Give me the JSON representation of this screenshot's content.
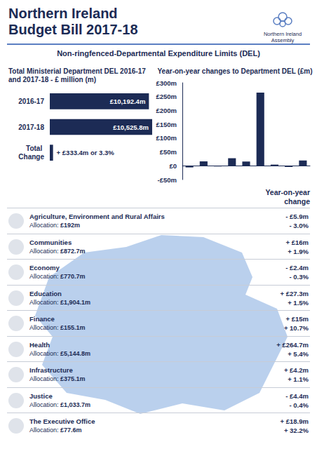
{
  "header": {
    "title": [
      "Northern Ireland",
      "Budget Bill 2017-18"
    ],
    "logo": [
      "Northern Ireland",
      "Assembly"
    ]
  },
  "subtitle": "Non-ringfenced-Departmental Expenditure Limits (DEL)",
  "chart_data": [
    {
      "type": "bar",
      "orientation": "horizontal",
      "title": "Total Ministerial Department DEL 2016-17 and 2017-18 - £ million (m)",
      "categories": [
        "2016-17",
        "2017-18",
        "Total Change"
      ],
      "values": [
        10192.4,
        10525.8,
        333.4
      ],
      "value_labels": [
        "£10,192.4m",
        "£10,525.8m",
        "+ £333.4m or 3.3%"
      ],
      "xlim": [
        0,
        10600
      ],
      "color": "#1c2b55",
      "data_labels": true,
      "tick_labels": "y",
      "grid": false
    },
    {
      "type": "bar",
      "title": "Year-on-year changes to Department DEL (£m)",
      "categories": [
        null,
        null,
        null,
        null,
        null,
        null,
        null,
        null,
        null
      ],
      "values": [
        -5.9,
        16,
        -2.4,
        27.3,
        15,
        264.7,
        4.2,
        -4.4,
        18.9
      ],
      "ylim": [
        -50,
        300
      ],
      "yticks": [
        {
          "value": -50,
          "label": "-£50m"
        },
        {
          "value": 0,
          "label": "£0"
        },
        {
          "value": 50,
          "label": "£50m"
        },
        {
          "value": 100,
          "label": "£100m"
        },
        {
          "value": 150,
          "label": "£150m"
        },
        {
          "value": 200,
          "label": "£200m"
        },
        {
          "value": 250,
          "label": "£250m"
        },
        {
          "value": 300,
          "label": "£300m"
        }
      ],
      "color": "#1c2b55",
      "tick_labels": "y",
      "grid": false
    }
  ],
  "list": {
    "heading": [
      "Year-on-year",
      "change"
    ],
    "allocation_label": "Allocation:",
    "rows": [
      {
        "name": "Agriculture, Environment and Rural Affairs",
        "allocation": "£192m",
        "change": "- £5.9m",
        "percent": "- 3.0%"
      },
      {
        "name": "Communities",
        "allocation": "£872.7m",
        "change": "+ £16m",
        "percent": "+ 1.9%"
      },
      {
        "name": "Economy",
        "allocation": "£770.7m",
        "change": "- £2.4m",
        "percent": "- 0.3%"
      },
      {
        "name": "Education",
        "allocation": "£1,904.1m",
        "change": "+ £27.3m",
        "percent": "+ 1.5%"
      },
      {
        "name": "Finance",
        "allocation": "£155.1m",
        "change": "+ £15m",
        "percent": "+ 10.7%"
      },
      {
        "name": "Health",
        "allocation": "£5,144.8m",
        "change": "+ £264.7m",
        "percent": "+ 5.4%"
      },
      {
        "name": "Infrastructure",
        "allocation": "£375.1m",
        "change": "+ £4.2m",
        "percent": "+ 1.1%"
      },
      {
        "name": "Justice",
        "allocation": "£1,033.7m",
        "change": "- £4.4m",
        "percent": "- 0.4%"
      },
      {
        "name": "The Executive Office",
        "allocation": "£77.6m",
        "change": "+ £18.9m",
        "percent": "+ 32.2%"
      }
    ]
  }
}
